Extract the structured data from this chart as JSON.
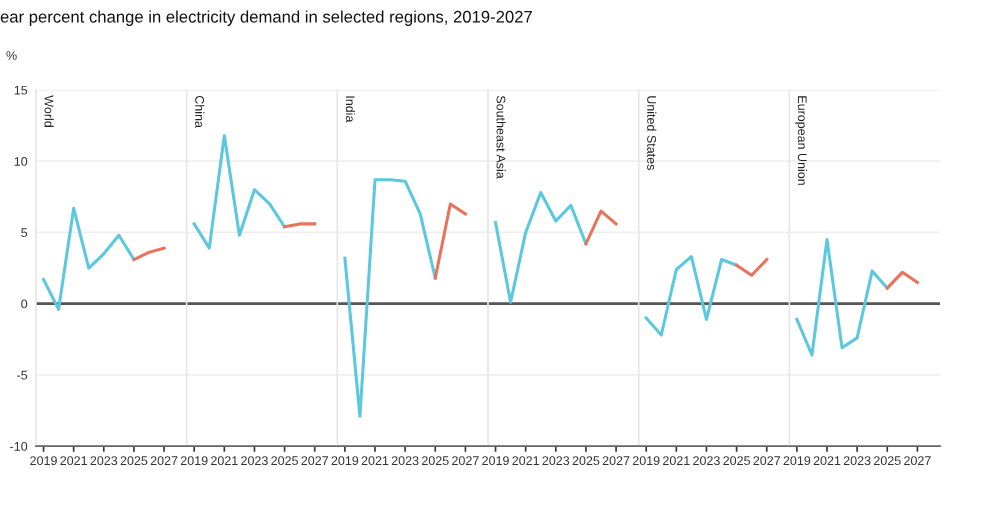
{
  "chart_data": [
    {
      "type": "line",
      "title": "World",
      "ylabel": "%",
      "annotations": [
        "ear percent change in electricity demand in selected regions, 2019-2027"
      ],
      "x": [
        2019,
        2020,
        2021,
        2022,
        2023,
        2024,
        2025,
        2026,
        2027
      ],
      "xlim": [
        2018.5,
        2028.5
      ],
      "xticks": [
        2019,
        2021,
        2023,
        2025,
        2027
      ],
      "ylim": [
        -10,
        15
      ],
      "yticks": [
        -10,
        -5,
        0,
        5,
        10,
        15
      ],
      "grid": "y",
      "ref_lines": [
        {
          "axis": "y",
          "value": 0,
          "color": "#555555"
        }
      ],
      "series": [
        {
          "color": "#5bc8e0",
          "values": [
            1.7,
            -0.4,
            6.7,
            2.5,
            3.5,
            4.8,
            3.1,
            null,
            null
          ]
        },
        {
          "color": "#e8735a",
          "values": [
            null,
            null,
            null,
            null,
            null,
            null,
            3.1,
            3.6,
            3.9
          ]
        }
      ]
    },
    {
      "type": "line",
      "title": "China",
      "tick_labels": "x",
      "x": [
        2019,
        2020,
        2021,
        2022,
        2023,
        2024,
        2025,
        2026,
        2027
      ],
      "xlim": [
        2018.5,
        2028.5
      ],
      "xticks": [
        2019,
        2021,
        2023,
        2025,
        2027
      ],
      "ylim": [
        -10,
        15
      ],
      "grid": "y",
      "ref_lines": [
        {
          "axis": "y",
          "value": 0,
          "color": "#555555"
        }
      ],
      "series": [
        {
          "color": "#5bc8e0",
          "values": [
            5.6,
            3.9,
            11.8,
            4.8,
            8.0,
            7.0,
            5.4,
            null,
            null
          ]
        },
        {
          "color": "#e8735a",
          "values": [
            null,
            null,
            null,
            null,
            null,
            null,
            5.4,
            5.6,
            5.6
          ]
        }
      ]
    },
    {
      "type": "line",
      "title": "India",
      "tick_labels": "x",
      "x": [
        2019,
        2020,
        2021,
        2022,
        2023,
        2024,
        2025,
        2026,
        2027
      ],
      "xlim": [
        2018.5,
        2028.5
      ],
      "xticks": [
        2019,
        2021,
        2023,
        2025,
        2027
      ],
      "ylim": [
        -10,
        15
      ],
      "grid": "y",
      "ref_lines": [
        {
          "axis": "y",
          "value": 0,
          "color": "#555555"
        }
      ],
      "series": [
        {
          "color": "#5bc8e0",
          "values": [
            3.2,
            -7.9,
            8.7,
            8.7,
            8.6,
            6.3,
            1.8,
            null,
            null
          ]
        },
        {
          "color": "#e8735a",
          "values": [
            null,
            null,
            null,
            null,
            null,
            null,
            1.8,
            7.0,
            6.3
          ]
        }
      ]
    },
    {
      "type": "line",
      "title": "Southeast Asia",
      "tick_labels": "x",
      "x": [
        2019,
        2020,
        2021,
        2022,
        2023,
        2024,
        2025,
        2026,
        2027
      ],
      "xlim": [
        2018.5,
        2028.5
      ],
      "xticks": [
        2019,
        2021,
        2023,
        2025,
        2027
      ],
      "ylim": [
        -10,
        15
      ],
      "grid": "y",
      "ref_lines": [
        {
          "axis": "y",
          "value": 0,
          "color": "#555555"
        }
      ],
      "series": [
        {
          "color": "#5bc8e0",
          "values": [
            5.7,
            0.1,
            5.0,
            7.8,
            5.8,
            6.9,
            4.2,
            null,
            null
          ]
        },
        {
          "color": "#e8735a",
          "values": [
            null,
            null,
            null,
            null,
            null,
            null,
            4.2,
            6.5,
            5.6
          ]
        }
      ]
    },
    {
      "type": "line",
      "title": "United States",
      "tick_labels": "x",
      "x": [
        2019,
        2020,
        2021,
        2022,
        2023,
        2024,
        2025,
        2026,
        2027
      ],
      "xlim": [
        2018.5,
        2028.5
      ],
      "xticks": [
        2019,
        2021,
        2023,
        2025,
        2027
      ],
      "ylim": [
        -10,
        15
      ],
      "grid": "y",
      "ref_lines": [
        {
          "axis": "y",
          "value": 0,
          "color": "#555555"
        }
      ],
      "series": [
        {
          "color": "#5bc8e0",
          "values": [
            -1.0,
            -2.2,
            2.4,
            3.3,
            -1.1,
            3.1,
            2.7,
            null,
            null
          ]
        },
        {
          "color": "#e8735a",
          "values": [
            null,
            null,
            null,
            null,
            null,
            null,
            2.7,
            2.0,
            3.1
          ]
        }
      ]
    },
    {
      "type": "line",
      "title": "European Union",
      "tick_labels": "x",
      "x": [
        2019,
        2020,
        2021,
        2022,
        2023,
        2024,
        2025,
        2026,
        2027
      ],
      "xlim": [
        2018.5,
        2028.5
      ],
      "xticks": [
        2019,
        2021,
        2023,
        2025,
        2027
      ],
      "ylim": [
        -10,
        15
      ],
      "grid": "y",
      "ref_lines": [
        {
          "axis": "y",
          "value": 0,
          "color": "#555555"
        }
      ],
      "series": [
        {
          "color": "#5bc8e0",
          "values": [
            -1.1,
            -3.6,
            4.5,
            -3.1,
            -2.4,
            2.3,
            1.1,
            null,
            null
          ]
        },
        {
          "color": "#e8735a",
          "values": [
            null,
            null,
            null,
            null,
            null,
            null,
            1.1,
            2.2,
            1.5
          ]
        }
      ]
    }
  ]
}
